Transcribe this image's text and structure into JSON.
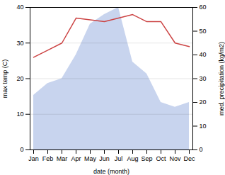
{
  "chart_data": {
    "type": "line",
    "categories": [
      "Jan",
      "Feb",
      "Mar",
      "Apr",
      "May",
      "Jun",
      "Jul",
      "Aug",
      "Sep",
      "Oct",
      "Nov",
      "Dec"
    ],
    "xlabel": "date (month)",
    "ylabel": "max temp (C)",
    "y2label": "med. precipitation (kg/m2)",
    "series": [
      {
        "type": "area",
        "axis": "y2",
        "color": "#c8d4ee",
        "values": [
          23,
          28,
          30,
          40,
          53,
          57,
          60,
          37,
          32,
          20,
          18,
          20
        ]
      },
      {
        "type": "line",
        "color": "#cc4444",
        "values": [
          26,
          28,
          30,
          37,
          36.5,
          36,
          37,
          38,
          36,
          36,
          30,
          29
        ]
      }
    ],
    "ylim": [
      0,
      40
    ],
    "yticks": [
      0,
      10,
      20,
      30,
      40
    ],
    "y2lim": [
      0,
      60
    ],
    "y2ticks": [
      0,
      10,
      20,
      30,
      40,
      50,
      60
    ],
    "grid": true
  }
}
